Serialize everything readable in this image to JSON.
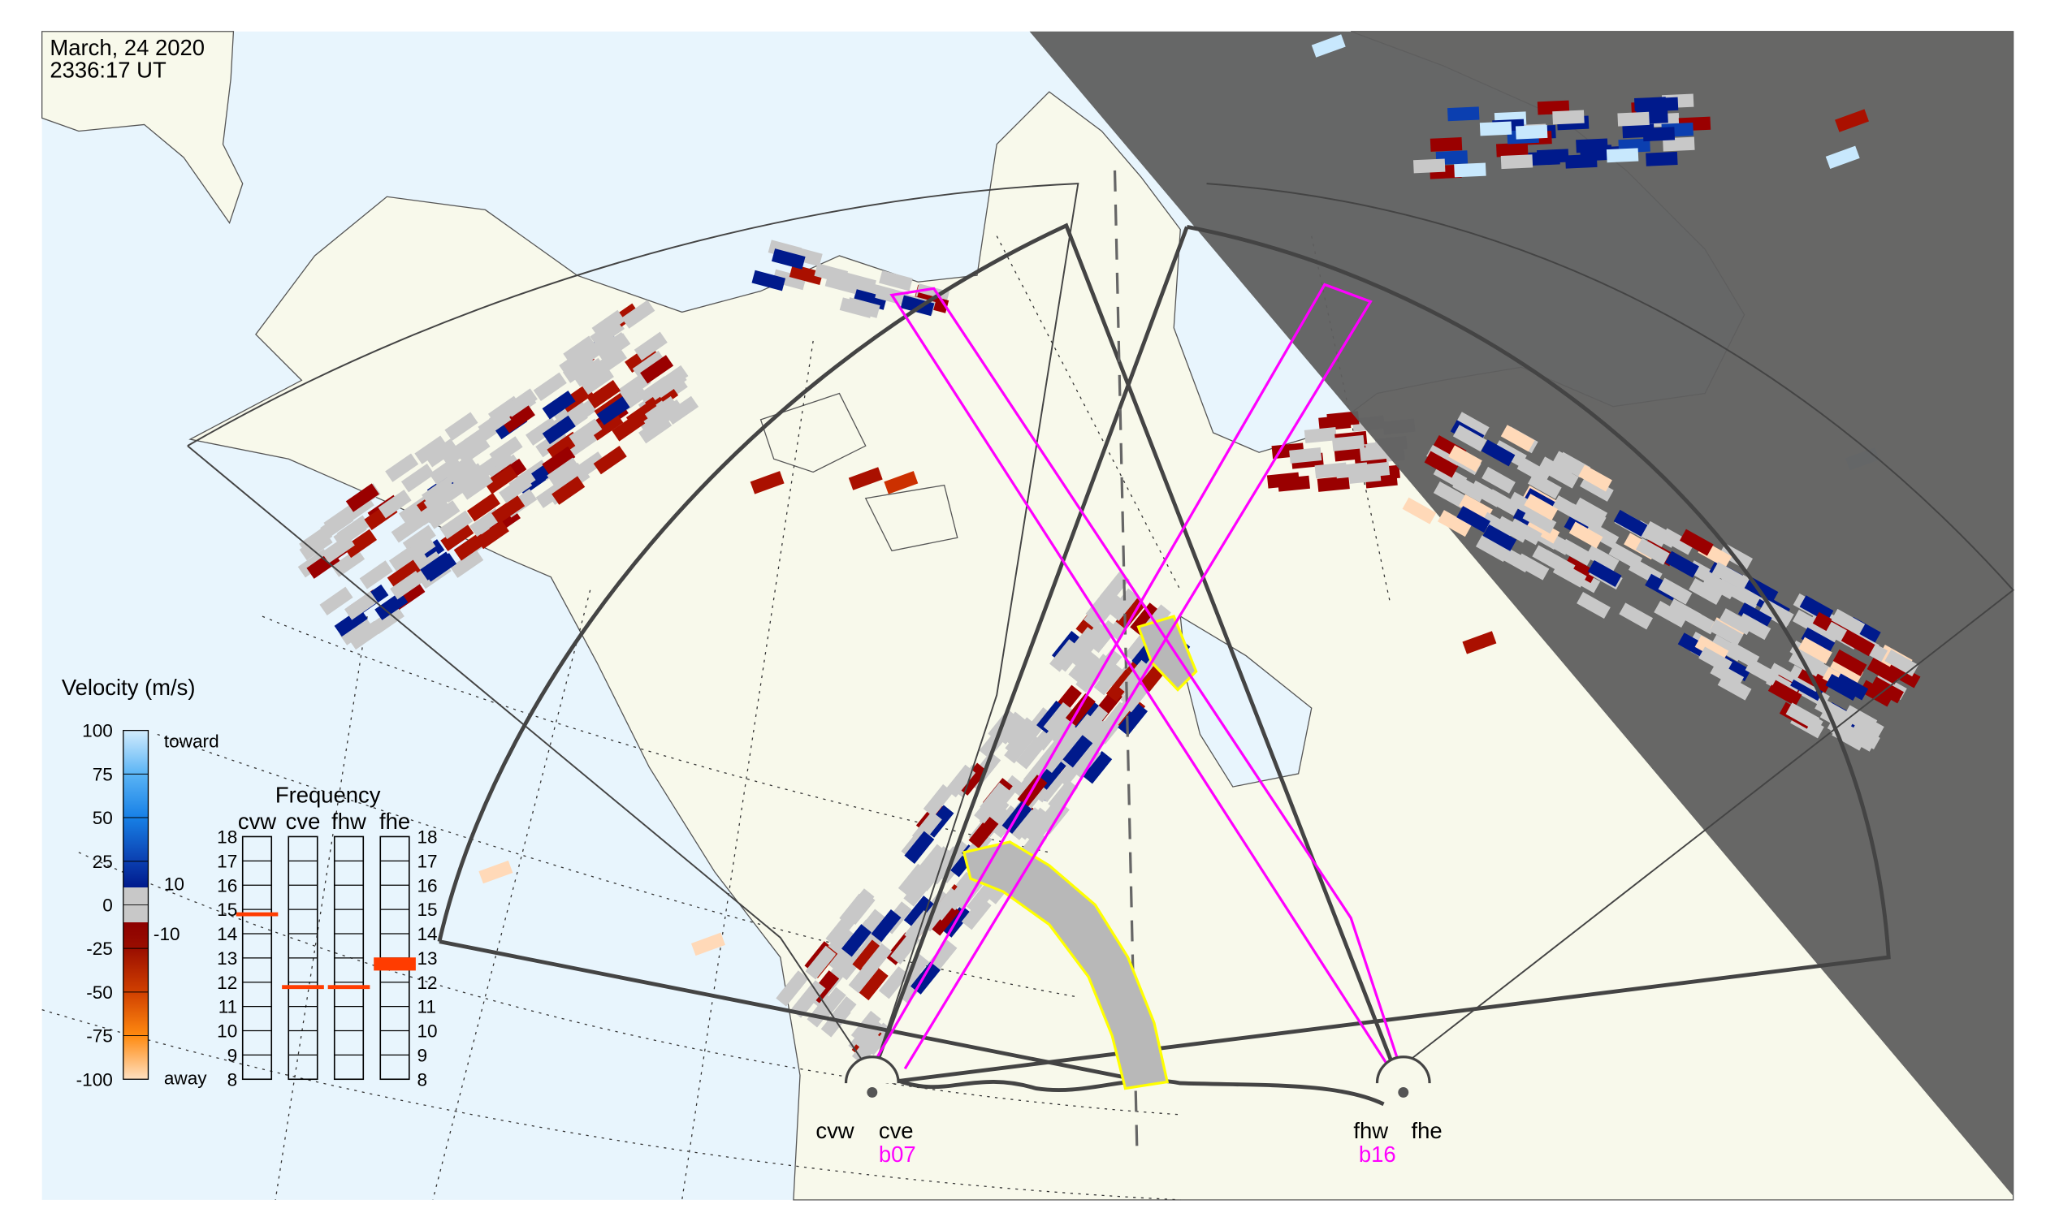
{
  "header": {
    "date": "March, 24 2020",
    "time": "2336:17 UT"
  },
  "colors": {
    "ocean": "#e8f5fd",
    "land": "#f8f9eb",
    "night": "#5f5f5f",
    "ground_scatter": "#c8c8c8",
    "beam": "#ff00ff",
    "highlight": "#ffff00",
    "fov_outline": "#444444",
    "freq_marker": "#ff3c00"
  },
  "velocity_legend": {
    "title": "Velocity (m/s)",
    "ticks": [
      "100",
      "75",
      "50",
      "25",
      "0",
      "-25",
      "-50",
      "-75",
      "-100"
    ],
    "toward_label": "toward",
    "away_label": "away",
    "gs_upper": "10",
    "gs_lower": "-10",
    "range": [
      -100,
      100
    ]
  },
  "frequency_panel": {
    "title": "Frequency",
    "radars": [
      "cvw",
      "cve",
      "fhw",
      "fhe"
    ],
    "ticks": [
      "18",
      "17",
      "16",
      "15",
      "14",
      "13",
      "12",
      "11",
      "10",
      "9",
      "8"
    ],
    "range_mhz": [
      8,
      18
    ],
    "markers_mhz": [
      14.8,
      11.8,
      11.8,
      12.75
    ]
  },
  "stations": [
    {
      "id": "cv",
      "left": "cvw",
      "right": "cve",
      "beam": "b07"
    },
    {
      "id": "fh",
      "left": "fhw",
      "right": "fhe",
      "beam": "b16"
    }
  ]
}
